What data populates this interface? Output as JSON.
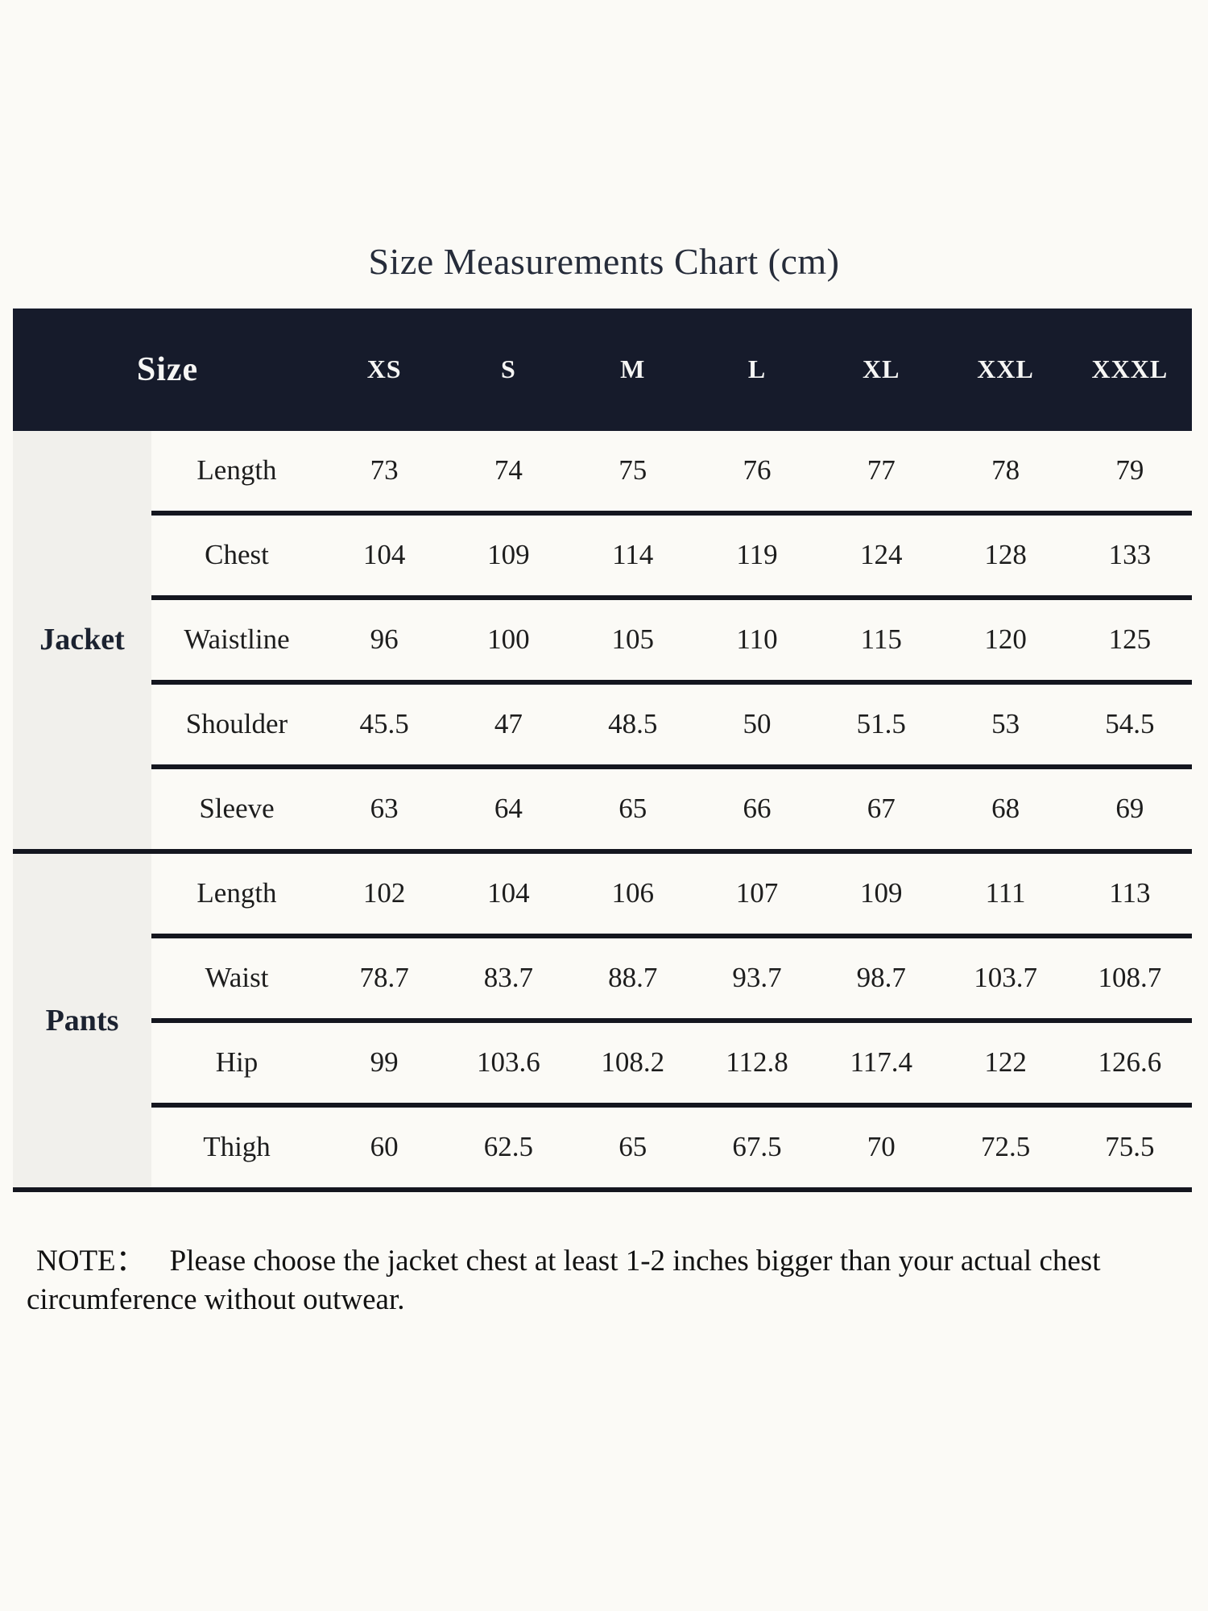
{
  "title": "Size Measurements Chart (cm)",
  "colors": {
    "header_background": "#161b2b",
    "sidebar_background": "#f1f0ec",
    "divider": "#14161f",
    "page_background": "#fbfaf6"
  },
  "chart_data": {
    "type": "table",
    "title": "Size Measurements Chart (cm)",
    "unit": "cm",
    "columns": [
      "Size",
      "XS",
      "S",
      "M",
      "L",
      "XL",
      "XXL",
      "XXXL"
    ],
    "rows": [
      {
        "group": "Jacket",
        "measure": "Length",
        "values": [
          73,
          74,
          75,
          76,
          77,
          78,
          79
        ]
      },
      {
        "group": "Jacket",
        "measure": "Chest",
        "values": [
          104,
          109,
          114,
          119,
          124,
          128,
          133
        ]
      },
      {
        "group": "Jacket",
        "measure": "Waistline",
        "values": [
          96,
          100,
          105,
          110,
          115,
          120,
          125
        ]
      },
      {
        "group": "Jacket",
        "measure": "Shoulder",
        "values": [
          45.5,
          47,
          48.5,
          50,
          51.5,
          53,
          54.5
        ]
      },
      {
        "group": "Jacket",
        "measure": "Sleeve",
        "values": [
          63,
          64,
          65,
          66,
          67,
          68,
          69
        ]
      },
      {
        "group": "Pants",
        "measure": "Length",
        "values": [
          102,
          104,
          106,
          107,
          109,
          111,
          113
        ]
      },
      {
        "group": "Pants",
        "measure": "Waist",
        "values": [
          78.7,
          83.7,
          88.7,
          93.7,
          98.7,
          103.7,
          108.7
        ]
      },
      {
        "group": "Pants",
        "measure": "Hip",
        "values": [
          99,
          103.6,
          108.2,
          112.8,
          117.4,
          122,
          126.6
        ]
      },
      {
        "group": "Pants",
        "measure": "Thigh",
        "values": [
          60,
          62.5,
          65,
          67.5,
          70,
          72.5,
          75.5
        ]
      }
    ]
  },
  "note": {
    "label": "NOTE：",
    "text": "Please choose the jacket chest at least 1-2 inches bigger than your actual chest circumference without outwear."
  }
}
